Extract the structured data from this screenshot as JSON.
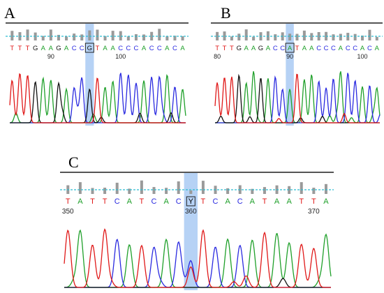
{
  "colors": {
    "A": "#1fa02a",
    "C": "#2a2ae0",
    "G": "#111111",
    "T": "#e01818",
    "highlight": "#9ec3f2",
    "quality_bar": "#9a9a9a",
    "threshold_line": "#2bbcd0"
  },
  "panels": [
    {
      "letter": "A",
      "sequence": "TTTGAAGACCGTAACCCACCACA",
      "marked_base": "G",
      "marked_index": 10,
      "ticks": [
        {
          "label": "90",
          "index": 5
        },
        {
          "label": "100",
          "index": 14
        }
      ]
    },
    {
      "letter": "B",
      "sequence": "TTTGAAGACCATAACCCACCACA",
      "marked_base": "A",
      "marked_index": 10,
      "ticks": [
        {
          "label": "80",
          "index": 0
        },
        {
          "label": "90",
          "index": 10
        },
        {
          "label": "100",
          "index": 20
        }
      ]
    },
    {
      "letter": "C",
      "sequence": "TATTCATCACYTCACATAATTA",
      "marked_base": "Y",
      "marked_index": 10,
      "ticks": [
        {
          "label": "350",
          "index": 0
        },
        {
          "label": "360",
          "index": 10
        },
        {
          "label": "370",
          "index": 20
        }
      ]
    }
  ]
}
